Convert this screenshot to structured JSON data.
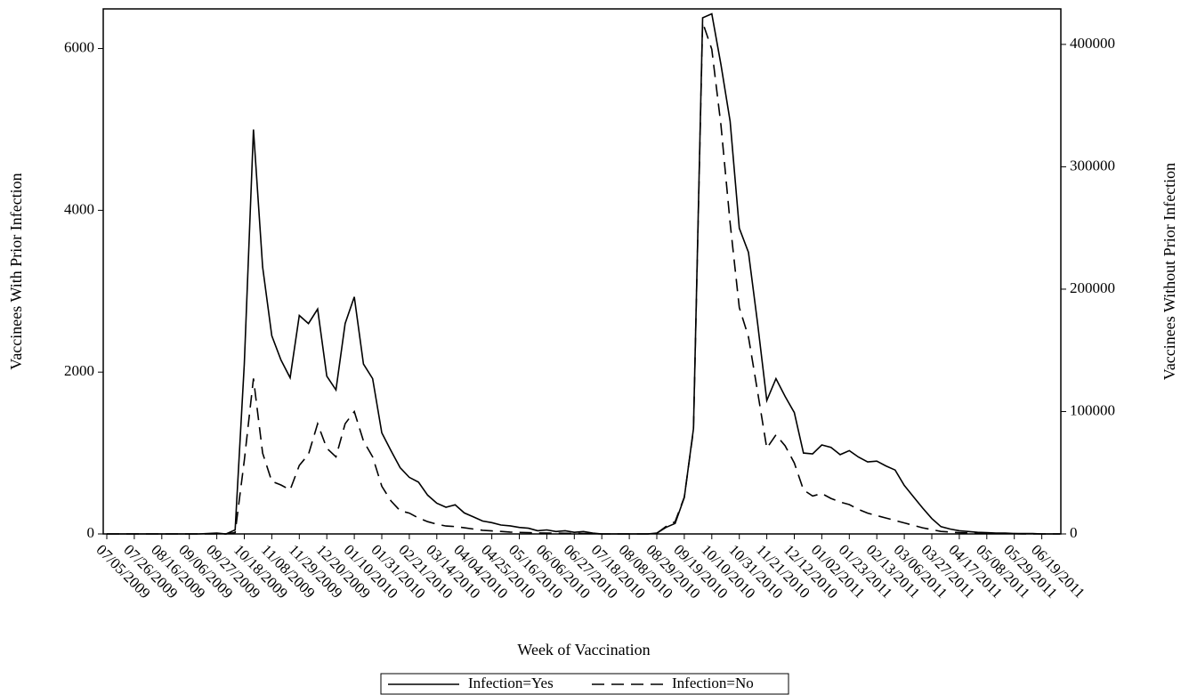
{
  "chart_data": {
    "type": "line",
    "x_label": "Week of Vaccination",
    "y_label": "Vaccinees With Prior Infection",
    "y2_label": "Vaccinees Without Prior Infection",
    "categories": [
      "07/05/2009",
      null,
      null,
      "07/26/2009",
      null,
      null,
      "08/16/2009",
      null,
      null,
      "09/06/2009",
      null,
      null,
      "09/27/2009",
      null,
      null,
      "10/18/2009",
      null,
      null,
      "11/08/2009",
      null,
      null,
      "11/29/2009",
      null,
      null,
      "12/20/2009",
      null,
      null,
      "01/10/2010",
      null,
      null,
      "01/31/2010",
      null,
      null,
      "02/21/2010",
      null,
      null,
      "03/14/2010",
      null,
      null,
      "04/04/2010",
      null,
      null,
      "04/25/2010",
      null,
      null,
      "05/16/2010",
      null,
      null,
      "06/06/2010",
      null,
      null,
      "06/27/2010",
      null,
      null,
      "07/18/2010",
      null,
      null,
      "08/08/2010",
      null,
      null,
      "08/29/2010",
      null,
      null,
      "09/19/2010",
      null,
      null,
      "10/10/2010",
      null,
      null,
      "10/31/2010",
      null,
      null,
      "11/21/2010",
      null,
      null,
      "12/12/2010",
      null,
      null,
      "01/02/2011",
      null,
      null,
      "01/23/2011",
      null,
      null,
      "02/13/2011",
      null,
      null,
      "03/06/2011",
      null,
      null,
      "03/27/2011",
      null,
      null,
      "04/17/2011",
      null,
      null,
      "05/08/2011",
      null,
      null,
      "05/29/2011",
      null,
      null,
      "06/19/2011",
      null,
      null
    ],
    "series": [
      {
        "name": "Infection=Yes",
        "color": "#000000",
        "line_style": "solid",
        "axis": "y",
        "values": [
          0,
          0,
          0,
          0,
          0,
          0,
          0,
          0,
          0,
          0,
          0,
          5,
          10,
          0,
          50,
          2100,
          5000,
          3300,
          2450,
          2150,
          1930,
          2700,
          2600,
          2780,
          1950,
          1780,
          2600,
          2930,
          2100,
          1920,
          1250,
          1030,
          820,
          700,
          640,
          480,
          380,
          330,
          360,
          260,
          210,
          160,
          140,
          110,
          100,
          80,
          70,
          40,
          50,
          30,
          40,
          20,
          30,
          10,
          0,
          0,
          0,
          0,
          0,
          0,
          10,
          80,
          130,
          450,
          1300,
          6380,
          6430,
          5800,
          5100,
          3780,
          3480,
          2600,
          1650,
          1920,
          1700,
          1500,
          1000,
          990,
          1100,
          1070,
          980,
          1030,
          950,
          890,
          900,
          840,
          790,
          600,
          460,
          320,
          190,
          90,
          60,
          40,
          30,
          20,
          15,
          10,
          10,
          5,
          5,
          5,
          0,
          0,
          0
        ]
      },
      {
        "name": "Infection=No",
        "color": "#000000",
        "line_style": "dashed",
        "axis": "y2",
        "values": [
          0,
          0,
          0,
          0,
          0,
          0,
          0,
          0,
          0,
          0,
          0,
          0,
          0,
          0,
          1000,
          60000,
          127000,
          66000,
          43000,
          40000,
          36000,
          56000,
          65000,
          90000,
          70000,
          63000,
          90000,
          100000,
          76000,
          63000,
          39000,
          27000,
          19000,
          17000,
          13000,
          10000,
          8000,
          6500,
          6000,
          5000,
          4000,
          3000,
          2500,
          2000,
          1500,
          1200,
          1000,
          800,
          700,
          600,
          500,
          400,
          300,
          200,
          0,
          0,
          0,
          0,
          0,
          0,
          500,
          6000,
          10000,
          30000,
          85000,
          418000,
          396000,
          334000,
          254000,
          185000,
          161000,
          116000,
          70000,
          81000,
          72000,
          58000,
          36000,
          31000,
          33000,
          29000,
          26000,
          24000,
          20000,
          17000,
          15000,
          13000,
          11000,
          9000,
          7000,
          5000,
          3500,
          2000,
          1500,
          1000,
          800,
          600,
          500,
          400,
          300,
          200,
          100,
          100,
          0,
          0,
          0
        ]
      }
    ],
    "ylim": [
      0,
      6490
    ],
    "yticks": [
      0,
      2000,
      4000,
      6000
    ],
    "y2lim": [
      0,
      429000
    ],
    "y2ticks": [
      0,
      100000,
      200000,
      300000,
      400000
    ],
    "grid": false,
    "legend": "bottom"
  }
}
